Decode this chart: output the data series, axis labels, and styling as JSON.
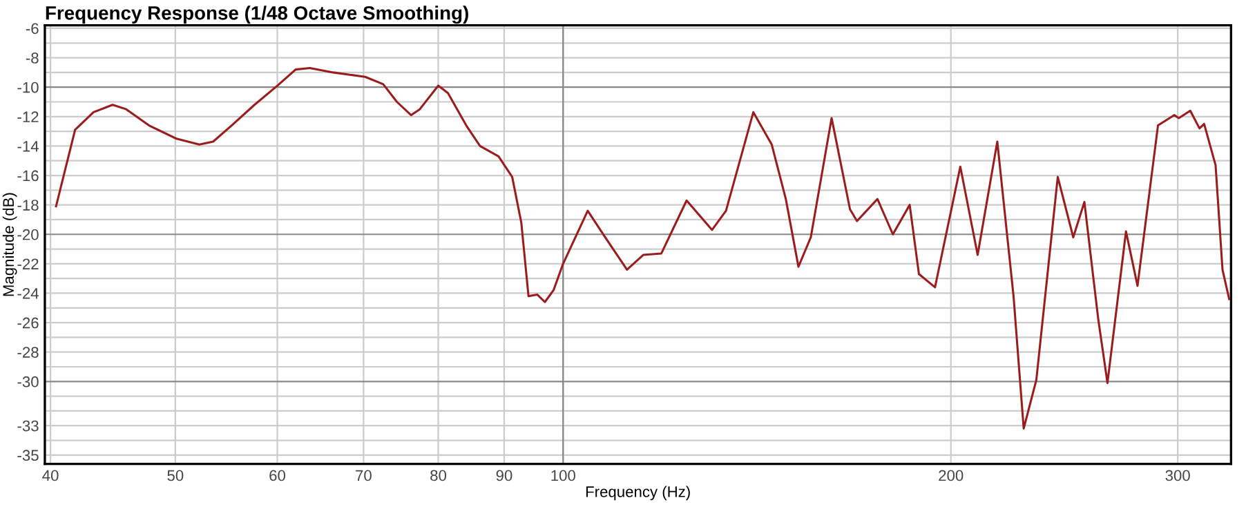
{
  "chart_data": {
    "type": "line",
    "title": "Frequency Response (1/48 Octave Smoothing)",
    "xlabel": "Frequency (Hz)",
    "ylabel": "Magnitude (dB)",
    "log": "x",
    "grid": true,
    "legend": false,
    "marker": "none",
    "line_style": "solid",
    "xlim": [
      39.6,
      330
    ],
    "xticks": [
      40,
      50,
      60,
      70,
      80,
      90,
      100,
      200,
      300
    ],
    "ylim": [
      -35.6,
      -5.8
    ],
    "yticks": [
      -6,
      -8,
      -10,
      -12,
      -14,
      -16,
      -18,
      -20,
      -22,
      -24,
      -26,
      -28,
      -30,
      -33,
      -35
    ],
    "series": [
      {
        "color": "#9b1c1c",
        "x": [
          40.4,
          41.8,
          43.2,
          44.7,
          45.8,
          47.7,
          50.1,
          52.2,
          53.5,
          55.3,
          57.6,
          60.0,
          62.0,
          63.6,
          66.3,
          70.2,
          72.5,
          74.3,
          76.2,
          77.4,
          80.0,
          81.4,
          84.1,
          86.2,
          89.1,
          91.3,
          92.8,
          94.0,
          95.5,
          96.8,
          98.3,
          100,
          104.5,
          108.0,
          112.1,
          115.4,
          119.2,
          124.7,
          130.5,
          133.8,
          140.5,
          145.2,
          148.9,
          152.3,
          155.7,
          161.6,
          167.0,
          169.1,
          175.4,
          180.3,
          185.8,
          188.9,
          194.4,
          203.4,
          209.8,
          217.3,
          223.7,
          227.8,
          233.0,
          242.1,
          248.9,
          253.9,
          260.3,
          264.6,
          273.5,
          279.2,
          289.6,
          298.1,
          300.6,
          306.8,
          311.9,
          314.5,
          321.0,
          325.0,
          328.9
        ],
        "values": [
          -18.1,
          -12.9,
          -11.7,
          -11.2,
          -11.5,
          -12.6,
          -13.5,
          -13.9,
          -13.7,
          -12.6,
          -11.2,
          -9.9,
          -8.8,
          -8.7,
          -9.0,
          -9.3,
          -9.8,
          -11.0,
          -11.9,
          -11.5,
          -9.9,
          -10.4,
          -12.6,
          -14.0,
          -14.7,
          -16.1,
          -19.2,
          -24.2,
          -24.1,
          -24.6,
          -23.8,
          -22.0,
          -18.4,
          -20.3,
          -22.4,
          -21.4,
          -21.3,
          -17.7,
          -19.7,
          -18.4,
          -11.7,
          -13.9,
          -17.6,
          -22.2,
          -20.2,
          -12.1,
          -18.3,
          -19.1,
          -17.6,
          -20.0,
          -18.0,
          -22.7,
          -23.6,
          -15.4,
          -21.4,
          -13.7,
          -24.2,
          -33.2,
          -29.9,
          -16.1,
          -20.2,
          -17.8,
          -25.8,
          -30.1,
          -19.8,
          -23.5,
          -12.6,
          -11.9,
          -12.1,
          -11.6,
          -12.8,
          -12.5,
          -15.3,
          -22.4,
          -24.4
        ]
      }
    ]
  }
}
